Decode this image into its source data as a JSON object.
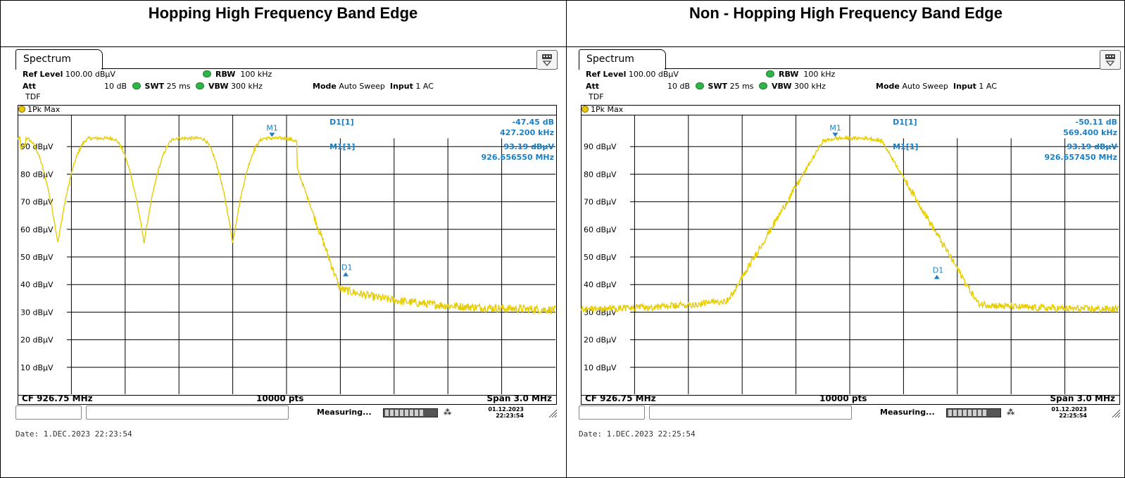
{
  "titles": {
    "left": "Hopping High Frequency Band Edge",
    "right": "Non - Hopping High Frequency Band Edge"
  },
  "colors": {
    "trace": "#e6cc00",
    "marker": "#1b7fc4",
    "led_green": "#2fb545",
    "grid": "#000000"
  },
  "panels": [
    {
      "id": "hopping",
      "tab_label": "Spectrum",
      "ref_level_label": "Ref Level",
      "ref_level_value": "100.00 dBµV",
      "rbw_label": "RBW",
      "rbw_value": "100 kHz",
      "att_label": "Att",
      "att_value": "10 dB",
      "swt_label": "SWT",
      "swt_value": "25 ms",
      "vbw_label": "VBW",
      "vbw_value": "300 kHz",
      "mode_label": "Mode",
      "mode_value": "Auto Sweep",
      "input_label": "Input",
      "input_value": "1 AC",
      "tdf": "TDF",
      "trace_label": "1Pk Max",
      "y_labels": [
        "90 dBµV",
        "80 dBµV",
        "70 dBµV",
        "60 dBµV",
        "50 dBµV",
        "40 dBµV",
        "30 dBµV",
        "20 dBµV",
        "10 dBµV"
      ],
      "m1_label": "M1",
      "d1_label": "D1",
      "readout": {
        "d1_tag": "D1[1]",
        "d1_value": "-47.45 dB",
        "d1_freq": "427.200 kHz",
        "m1_tag": "M1[1]",
        "m1_value": "93.19 dBµV",
        "m1_freq": "926.656550 MHz"
      },
      "cf": "CF 926.75 MHz",
      "pts": "10000 pts",
      "span": "Span 3.0 MHz",
      "status_text": "Measuring...",
      "status_date": "01.12.2023",
      "status_time": "22:23:54",
      "date_line": "Date: 1.DEC.2023  22:23:54"
    },
    {
      "id": "non-hopping",
      "tab_label": "Spectrum",
      "ref_level_label": "Ref Level",
      "ref_level_value": "100.00 dBµV",
      "rbw_label": "RBW",
      "rbw_value": "100 kHz",
      "att_label": "Att",
      "att_value": "10 dB",
      "swt_label": "SWT",
      "swt_value": "25 ms",
      "vbw_label": "VBW",
      "vbw_value": "300 kHz",
      "mode_label": "Mode",
      "mode_value": "Auto Sweep",
      "input_label": "Input",
      "input_value": "1 AC",
      "tdf": "TDF",
      "trace_label": "1Pk Max",
      "y_labels": [
        "90 dBµV",
        "80 dBµV",
        "70 dBµV",
        "60 dBµV",
        "50 dBµV",
        "40 dBµV",
        "30 dBµV",
        "20 dBµV",
        "10 dBµV"
      ],
      "m1_label": "M1",
      "d1_label": "D1",
      "readout": {
        "d1_tag": "D1[1]",
        "d1_value": "-50.11 dB",
        "d1_freq": "569.400 kHz",
        "m1_tag": "M1[1]",
        "m1_value": "93.19 dBµV",
        "m1_freq": "926.657450 MHz"
      },
      "cf": "CF 926.75 MHz",
      "pts": "10000 pts",
      "span": "Span 3.0 MHz",
      "status_text": "Measuring...",
      "status_date": "01.12.2023",
      "status_time": "22:25:54",
      "date_line": "Date: 1.DEC.2023  22:25:54"
    }
  ]
}
